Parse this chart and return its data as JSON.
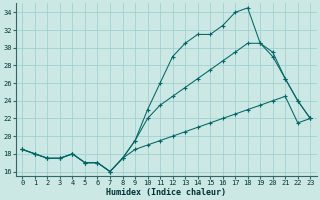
{
  "xlabel": "Humidex (Indice chaleur)",
  "bg_color": "#cce8e4",
  "grid_color": "#99cccc",
  "line_color": "#006666",
  "xlim": [
    -0.5,
    23.5
  ],
  "ylim": [
    15.5,
    35.0
  ],
  "yticks": [
    16,
    18,
    20,
    22,
    24,
    26,
    28,
    30,
    32,
    34
  ],
  "xticks": [
    0,
    1,
    2,
    3,
    4,
    5,
    6,
    7,
    8,
    9,
    10,
    11,
    12,
    13,
    14,
    15,
    16,
    17,
    18,
    19,
    20,
    21,
    22,
    23
  ],
  "line1_x": [
    0,
    1,
    2,
    3,
    4,
    5,
    6,
    7,
    8,
    9,
    10,
    11,
    12,
    13,
    14,
    15,
    16,
    17,
    18,
    19,
    20,
    21,
    22,
    23
  ],
  "line1_y": [
    18.5,
    18.0,
    17.5,
    17.5,
    18.0,
    17.0,
    17.0,
    16.0,
    17.5,
    18.5,
    19.0,
    19.5,
    20.0,
    20.5,
    21.0,
    21.5,
    22.0,
    22.5,
    23.0,
    23.5,
    24.0,
    24.5,
    21.5,
    22.0
  ],
  "line2_x": [
    0,
    1,
    2,
    3,
    4,
    5,
    6,
    7,
    8,
    9,
    10,
    11,
    12,
    13,
    14,
    15,
    16,
    17,
    18,
    19,
    20,
    21,
    22,
    23
  ],
  "line2_y": [
    18.5,
    18.0,
    17.5,
    17.5,
    18.0,
    17.0,
    17.0,
    16.0,
    17.5,
    19.5,
    23.0,
    26.0,
    29.0,
    30.5,
    31.5,
    31.5,
    32.5,
    34.0,
    34.5,
    30.5,
    29.0,
    26.5,
    24.0,
    22.0
  ],
  "line3_x": [
    0,
    1,
    2,
    3,
    4,
    5,
    6,
    7,
    8,
    9,
    10,
    11,
    12,
    13,
    14,
    15,
    16,
    17,
    18,
    19,
    20,
    21,
    22,
    23
  ],
  "line3_y": [
    18.5,
    18.0,
    17.5,
    17.5,
    18.0,
    17.0,
    17.0,
    16.0,
    17.5,
    19.5,
    22.0,
    23.5,
    24.5,
    25.5,
    26.5,
    27.5,
    28.5,
    29.5,
    30.5,
    30.5,
    29.5,
    26.5,
    24.0,
    22.0
  ]
}
